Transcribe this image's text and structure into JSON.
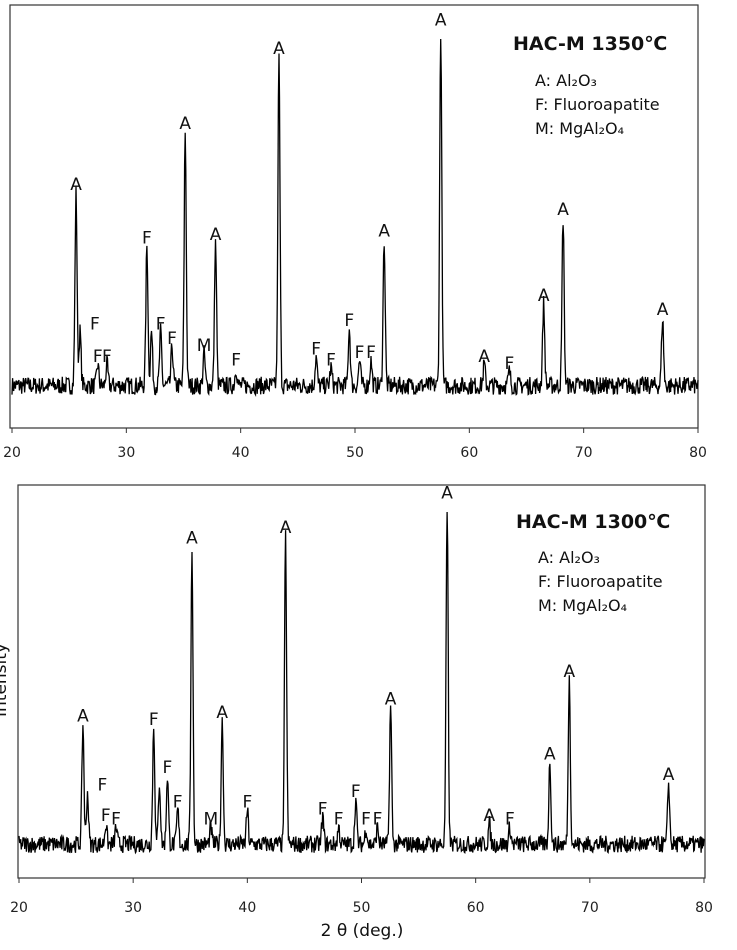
{
  "chart_data": [
    {
      "type": "line",
      "title": "HAC-M 1350℃",
      "xlabel": "",
      "ylabel": "",
      "xlim": [
        20,
        80
      ],
      "xticks": [
        "20",
        "30",
        "40",
        "50",
        "60",
        "70",
        "80"
      ],
      "grid": false,
      "legend": {
        "placement": "top-right",
        "entries": [
          "A: Al₂O₃",
          "F: Fluoroapatite",
          "M: MgAl₂O₄"
        ]
      },
      "peaks": [
        {
          "x": 25.6,
          "intensity": 0.54,
          "label": "A"
        },
        {
          "x": 25.95,
          "intensity": 0.15,
          "label": "F",
          "offset": "right"
        },
        {
          "x": 27.5,
          "intensity": 0.06,
          "label": "F"
        },
        {
          "x": 28.3,
          "intensity": 0.06,
          "label": "F"
        },
        {
          "x": 31.8,
          "intensity": 0.39,
          "label": "F"
        },
        {
          "x": 32.2,
          "intensity": 0.15,
          "label": ""
        },
        {
          "x": 33.0,
          "intensity": 0.15,
          "label": "F"
        },
        {
          "x": 34.0,
          "intensity": 0.11,
          "label": "F"
        },
        {
          "x": 35.15,
          "intensity": 0.71,
          "label": "A"
        },
        {
          "x": 36.8,
          "intensity": 0.09,
          "label": "M"
        },
        {
          "x": 37.8,
          "intensity": 0.4,
          "label": "A"
        },
        {
          "x": 39.6,
          "intensity": 0.05,
          "label": "F"
        },
        {
          "x": 43.35,
          "intensity": 0.92,
          "label": "A"
        },
        {
          "x": 46.6,
          "intensity": 0.08,
          "label": "F"
        },
        {
          "x": 47.9,
          "intensity": 0.05,
          "label": "F"
        },
        {
          "x": 49.5,
          "intensity": 0.16,
          "label": "F"
        },
        {
          "x": 50.4,
          "intensity": 0.07,
          "label": "F"
        },
        {
          "x": 51.4,
          "intensity": 0.07,
          "label": "F"
        },
        {
          "x": 52.55,
          "intensity": 0.41,
          "label": "A"
        },
        {
          "x": 57.5,
          "intensity": 1.0,
          "label": "A"
        },
        {
          "x": 61.3,
          "intensity": 0.06,
          "label": "A"
        },
        {
          "x": 63.5,
          "intensity": 0.04,
          "label": "F"
        },
        {
          "x": 66.5,
          "intensity": 0.23,
          "label": "A"
        },
        {
          "x": 68.2,
          "intensity": 0.47,
          "label": "A"
        },
        {
          "x": 76.9,
          "intensity": 0.19,
          "label": "A"
        }
      ]
    },
    {
      "type": "line",
      "title": "HAC-M 1300℃",
      "xlabel": "2 θ (deg.)",
      "ylabel": "Intensity",
      "xlim": [
        20,
        80
      ],
      "xticks": [
        "20",
        "30",
        "40",
        "50",
        "60",
        "70",
        "80"
      ],
      "grid": false,
      "legend": {
        "placement": "top-right",
        "entries": [
          "A: Al₂O₃",
          "F: Fluoroapatite",
          "M: MgAl₂O₄"
        ]
      },
      "peaks": [
        {
          "x": 25.6,
          "intensity": 0.35,
          "label": "A"
        },
        {
          "x": 26.0,
          "intensity": 0.15,
          "label": "F",
          "offset": "right"
        },
        {
          "x": 27.6,
          "intensity": 0.06,
          "label": "F"
        },
        {
          "x": 28.5,
          "intensity": 0.05,
          "label": "F"
        },
        {
          "x": 31.8,
          "intensity": 0.34,
          "label": "F"
        },
        {
          "x": 32.3,
          "intensity": 0.18,
          "label": ""
        },
        {
          "x": 33.0,
          "intensity": 0.2,
          "label": "F"
        },
        {
          "x": 33.9,
          "intensity": 0.1,
          "label": "F"
        },
        {
          "x": 35.15,
          "intensity": 0.87,
          "label": "A"
        },
        {
          "x": 36.8,
          "intensity": 0.05,
          "label": "M"
        },
        {
          "x": 37.8,
          "intensity": 0.36,
          "label": "A"
        },
        {
          "x": 40.0,
          "intensity": 0.1,
          "label": "F"
        },
        {
          "x": 43.35,
          "intensity": 0.9,
          "label": "A"
        },
        {
          "x": 46.6,
          "intensity": 0.08,
          "label": "F"
        },
        {
          "x": 48.0,
          "intensity": 0.05,
          "label": "F"
        },
        {
          "x": 49.5,
          "intensity": 0.13,
          "label": "F"
        },
        {
          "x": 50.4,
          "intensity": 0.05,
          "label": "F"
        },
        {
          "x": 51.4,
          "intensity": 0.05,
          "label": "F"
        },
        {
          "x": 52.55,
          "intensity": 0.4,
          "label": "A"
        },
        {
          "x": 57.5,
          "intensity": 1.0,
          "label": "A"
        },
        {
          "x": 61.2,
          "intensity": 0.06,
          "label": "A"
        },
        {
          "x": 63.0,
          "intensity": 0.05,
          "label": "F"
        },
        {
          "x": 66.5,
          "intensity": 0.24,
          "label": "A"
        },
        {
          "x": 68.2,
          "intensity": 0.48,
          "label": "A"
        },
        {
          "x": 76.9,
          "intensity": 0.18,
          "label": "A"
        }
      ]
    }
  ]
}
